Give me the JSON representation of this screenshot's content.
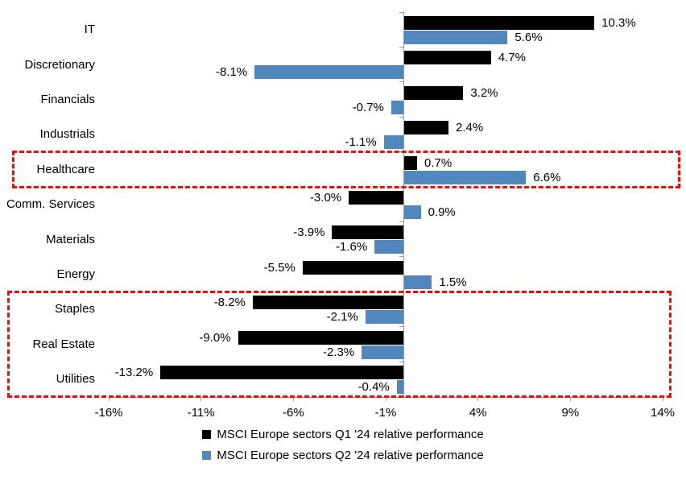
{
  "chart_data": {
    "type": "bar",
    "orientation": "horizontal",
    "title": "",
    "categories": [
      "IT",
      "Discretionary",
      "Financials",
      "Industrials",
      "Healthcare",
      "Comm. Services",
      "Materials",
      "Energy",
      "Staples",
      "Real Estate",
      "Utilities"
    ],
    "series": [
      {
        "name": "MSCI Europe sectors Q1 '24 relative performance",
        "color": "#000000",
        "values": [
          10.3,
          4.7,
          3.2,
          2.4,
          0.7,
          -3.0,
          -3.9,
          -5.5,
          -8.2,
          -9.0,
          -13.2
        ],
        "labels": [
          "10.3%",
          "4.7%",
          "3.2%",
          "2.4%",
          "0.7%",
          "-3.0%",
          "-3.9%",
          "-5.5%",
          "-8.2%",
          "-9.0%",
          "-13.2%"
        ]
      },
      {
        "name": "MSCI Europe sectors Q2 '24 relative performance",
        "color": "#5187BC",
        "values": [
          5.6,
          -8.1,
          -0.7,
          -1.1,
          6.6,
          0.9,
          -1.6,
          1.5,
          -2.1,
          -2.3,
          -0.4
        ],
        "labels": [
          "5.6%",
          "-8.1%",
          "-0.7%",
          "-1.1%",
          "6.6%",
          "0.9%",
          "-1.6%",
          "1.5%",
          "-2.1%",
          "-2.3%",
          "-0.4%"
        ]
      }
    ],
    "x_ticks": [
      "-16%",
      "-11%",
      "-6%",
      "-1%",
      "4%",
      "9%",
      "14%"
    ],
    "x_tick_values": [
      -16,
      -11,
      -6,
      -1,
      4,
      9,
      14
    ],
    "xlim": [
      -16,
      14
    ],
    "grid": false,
    "legend_position": "bottom",
    "axis_color": "#9a9a9a",
    "highlight_color": "#FB0505",
    "highlights": [
      {
        "name": "healthcare-highlight",
        "categories": [
          "Healthcare"
        ]
      },
      {
        "name": "defensives-highlight",
        "categories": [
          "Staples",
          "Real Estate",
          "Utilities"
        ]
      }
    ]
  }
}
